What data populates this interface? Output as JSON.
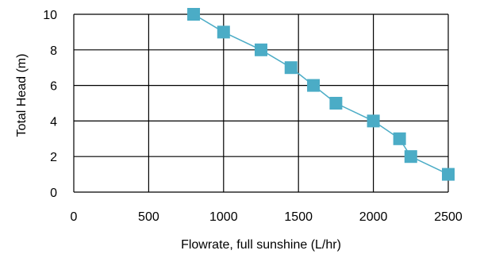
{
  "chart_data": {
    "type": "scatter",
    "xlabel": "Flowrate, full sunshine (L/hr)",
    "ylabel": "Total Head (m)",
    "xlim": [
      0,
      2500
    ],
    "ylim": [
      0,
      10
    ],
    "x_ticks": [
      0,
      500,
      1000,
      1500,
      2000,
      2500
    ],
    "y_ticks": [
      0,
      2,
      4,
      6,
      8,
      10
    ],
    "grid": true,
    "legend": "none",
    "series": [
      {
        "color": "#4bacc6",
        "marker": "square",
        "line": true,
        "points": [
          {
            "x": 800,
            "y": 10
          },
          {
            "x": 1000,
            "y": 9
          },
          {
            "x": 1250,
            "y": 8
          },
          {
            "x": 1450,
            "y": 7
          },
          {
            "x": 1600,
            "y": 6
          },
          {
            "x": 1750,
            "y": 5
          },
          {
            "x": 2000,
            "y": 4
          },
          {
            "x": 2175,
            "y": 3
          },
          {
            "x": 2250,
            "y": 2
          },
          {
            "x": 2500,
            "y": 1
          }
        ]
      }
    ]
  }
}
